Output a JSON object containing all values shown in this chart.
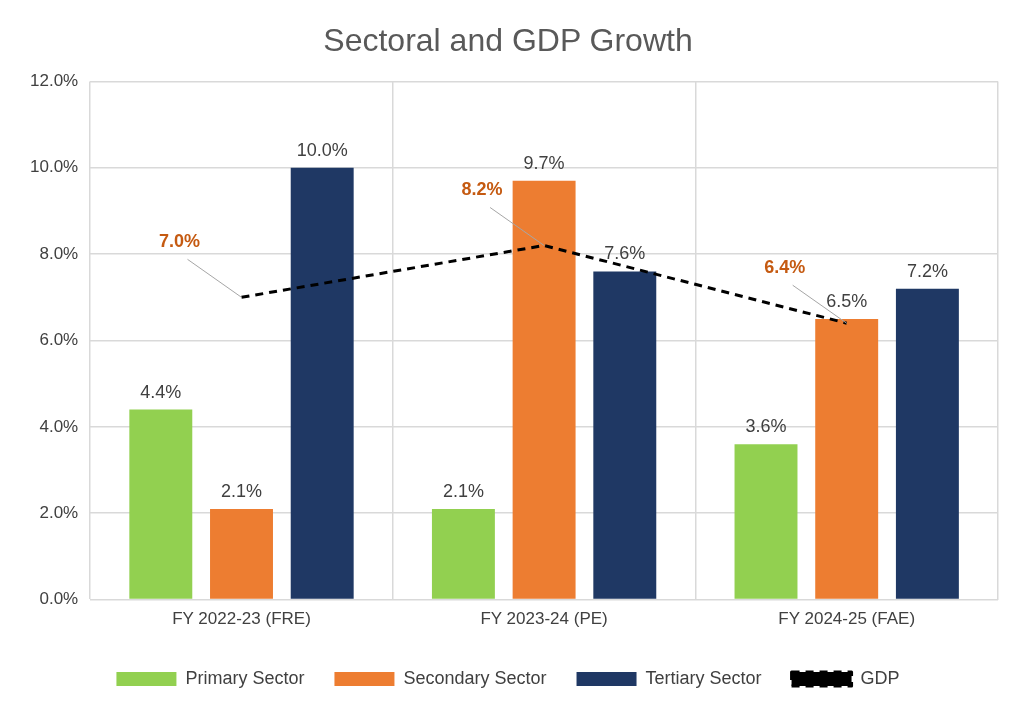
{
  "chart_data": {
    "type": "bar",
    "title": "Sectoral and GDP Growth",
    "categories": [
      "FY 2022-23 (FRE)",
      "FY 2023-24 (PE)",
      "FY 2024-25 (FAE)"
    ],
    "series": [
      {
        "name": "Primary Sector",
        "color": "#92d050",
        "values": [
          4.4,
          2.1,
          3.6
        ],
        "value_labels": [
          "4.4%",
          "2.1%",
          "3.6%"
        ]
      },
      {
        "name": "Secondary Sector",
        "color": "#ed7d31",
        "values": [
          2.1,
          9.7,
          6.5
        ],
        "value_labels": [
          "2.1%",
          "9.7%",
          "6.5%"
        ]
      },
      {
        "name": "Tertiary Sector",
        "color": "#1f3864",
        "values": [
          10.0,
          7.6,
          7.2
        ],
        "value_labels": [
          "10.0%",
          "7.6%",
          "7.2%"
        ]
      },
      {
        "name": "GDP",
        "type": "line",
        "color": "#000000",
        "line_style": "dashed",
        "marker": "none",
        "values": [
          7.0,
          8.2,
          6.4
        ],
        "value_labels": [
          "7.0%",
          "8.2%",
          "6.4%"
        ]
      }
    ],
    "ylim": [
      0,
      12
    ],
    "yticks": [
      {
        "value": 0,
        "label": "0.0%"
      },
      {
        "value": 2,
        "label": "2.0%"
      },
      {
        "value": 4,
        "label": "4.0%"
      },
      {
        "value": 6,
        "label": "6.0%"
      },
      {
        "value": 8,
        "label": "8.0%"
      },
      {
        "value": 10,
        "label": "10.0%"
      },
      {
        "value": 12,
        "label": "12.0%"
      }
    ],
    "grid": true,
    "legend": "bottom"
  }
}
